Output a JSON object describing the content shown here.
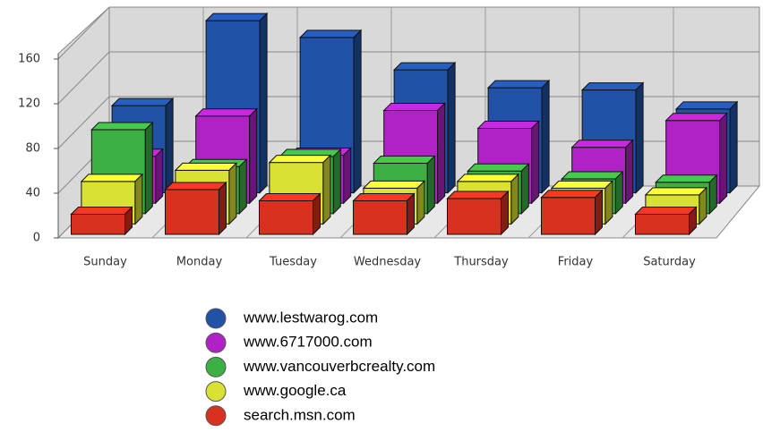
{
  "chart_data": {
    "type": "bar3d",
    "categories": [
      "Sunday",
      "Monday",
      "Tuesday",
      "Wednesday",
      "Thursday",
      "Friday",
      "Saturday"
    ],
    "series": [
      {
        "name": "www.lestwarog.com",
        "color": "#2152a8",
        "values": [
          78,
          154,
          139,
          110,
          94,
          92,
          75
        ]
      },
      {
        "name": "www.6717000.com",
        "color": "#b022c6",
        "values": [
          42,
          78,
          43,
          83,
          67,
          50,
          74
        ]
      },
      {
        "name": "www.vancouverbcrealty.com",
        "color": "#3cb043",
        "values": [
          75,
          42,
          51,
          45,
          38,
          31,
          28
        ]
      },
      {
        "name": "www.google.ca",
        "color": "#d9e232",
        "values": [
          38,
          48,
          55,
          32,
          38,
          32,
          26
        ]
      },
      {
        "name": "search.msn.com",
        "color": "#d8311f",
        "values": [
          18,
          40,
          30,
          30,
          32,
          33,
          18
        ]
      }
    ],
    "ylim": [
      0,
      160
    ],
    "yticks": [
      0,
      40,
      80,
      120,
      160
    ],
    "grid": true
  }
}
